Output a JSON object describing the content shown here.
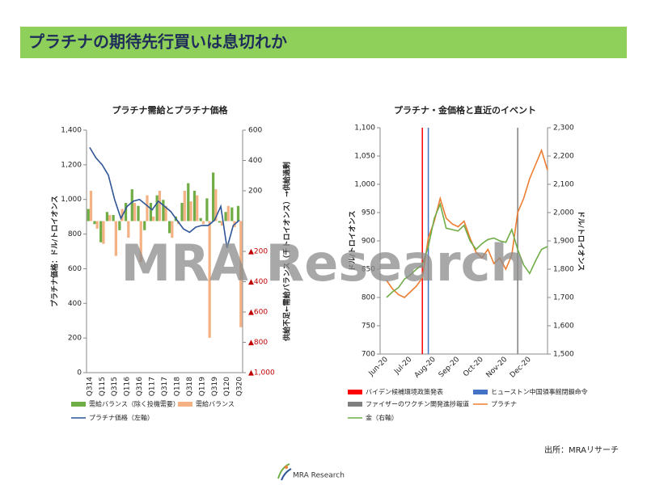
{
  "header": {
    "title": "プラチナの期待先行買いは息切れか"
  },
  "watermark": "MRA Research",
  "source": "出所：MRAリサーチ",
  "logo": "MRA Research",
  "chart_data": [
    {
      "type": "bar",
      "title": "プラチナ需給とプラチナ価格",
      "y_label": "プラチナ価格：ドル/トロイオンス",
      "y2_label": "供給不足←需給バランス（千トロイオンス）→供給過剰",
      "categories": [
        "Q314",
        null,
        "Q115",
        null,
        "Q315",
        null,
        "Q116",
        null,
        "Q316",
        null,
        "Q117",
        null,
        "Q317",
        null,
        "Q118",
        null,
        "Q318",
        null,
        "Q119",
        null,
        "Q319",
        null,
        "Q120",
        null,
        "Q320"
      ],
      "series": [
        {
          "name": "需給バランス（除く投機需要）",
          "type": "bar",
          "axis": "y2",
          "color": "#70ad47",
          "values": [
            80,
            -20,
            -140,
            60,
            40,
            -60,
            120,
            210,
            100,
            -60,
            120,
            170,
            140,
            -80,
            30,
            120,
            250,
            200,
            20,
            150,
            320,
            -10,
            60,
            90,
            100
          ]
        },
        {
          "name": "需給バランス",
          "type": "bar",
          "axis": "y2",
          "color": "#f4b183",
          "values": [
            200,
            -50,
            -150,
            40,
            -230,
            80,
            -110,
            120,
            -270,
            170,
            30,
            200,
            100,
            -110,
            -20,
            200,
            130,
            170,
            -20,
            -770,
            210,
            -30,
            100,
            -40,
            -700
          ]
        },
        {
          "name": "プラチナ価格（左軸）",
          "type": "line",
          "color": "#2f5597",
          "values": [
            1300,
            1240,
            1200,
            1140,
            1000,
            890,
            960,
            990,
            1000,
            970,
            940,
            990,
            960,
            930,
            880,
            830,
            810,
            840,
            850,
            850,
            880,
            960,
            720,
            850,
            880
          ]
        }
      ],
      "ylim": [
        0,
        1400
      ],
      "yticks": [
        0,
        200,
        400,
        600,
        800,
        {
          "value": 1000,
          "label": "1,000"
        },
        {
          "value": 1200,
          "label": "1,200"
        },
        {
          "value": 1400,
          "label": "1,400"
        }
      ],
      "y2lim": [
        -1000,
        600
      ],
      "y2ticks": [
        {
          "value": -1000,
          "label": "▲1,000"
        },
        {
          "value": -800,
          "label": "▲800"
        },
        {
          "value": -600,
          "label": "▲600"
        },
        {
          "value": -400,
          "label": "▲400"
        },
        {
          "value": -200,
          "label": "▲200"
        },
        200,
        400,
        600
      ],
      "negative_tick_color": "#c00000"
    },
    {
      "type": "line",
      "title": "プラチナ・金価格と直近のイベント",
      "y_label": "ドル/トロイオンス",
      "y2_label": "ドル/トロイオンス",
      "categories": [
        "Jun-20",
        null,
        null,
        null,
        "Jul-20",
        null,
        null,
        null,
        "Aug-20",
        null,
        null,
        null,
        "Sep-20",
        null,
        null,
        null,
        "Oct-20",
        null,
        null,
        null,
        "Nov-20",
        null,
        null,
        null,
        "Dec-20",
        null,
        null,
        null
      ],
      "events": [
        {
          "name": "バイデン候補環境政策発表",
          "color": "#ff0000",
          "at": 6
        },
        {
          "name": "ヒューストン中国領事館閉鎖命令",
          "color": "#4472c4",
          "at": 7
        },
        {
          "name": "ファイザーのワクチン開発進捗報道",
          "color": "#7f7f7f",
          "at": 22
        }
      ],
      "series": [
        {
          "name": "プラチナ",
          "color": "#ed7d31",
          "values": [
            830,
            815,
            805,
            800,
            810,
            820,
            835,
            905,
            935,
            975,
            940,
            930,
            925,
            935,
            905,
            880,
            870,
            885,
            860,
            870,
            850,
            875,
            950,
            975,
            1010,
            1035,
            1060,
            1025
          ]
        },
        {
          "name": "金（右軸）",
          "axis": "y2",
          "color": "#70ad47",
          "values": [
            1700,
            1720,
            1735,
            1765,
            1780,
            1800,
            1815,
            1880,
            1980,
            2030,
            1945,
            1940,
            1935,
            1955,
            1900,
            1870,
            1890,
            1905,
            1910,
            1900,
            1895,
            1940,
            1870,
            1815,
            1785,
            1830,
            1870,
            1880
          ]
        }
      ],
      "ylim": [
        700,
        1100
      ],
      "yticks": [
        700,
        750,
        800,
        850,
        900,
        950,
        {
          "value": 1000,
          "label": "1,000"
        },
        {
          "value": 1050,
          "label": "1,050"
        },
        {
          "value": 1100,
          "label": "1,100"
        }
      ],
      "y2lim": [
        1500,
        2300
      ],
      "y2ticks": [
        {
          "value": 1500,
          "label": "1,500"
        },
        {
          "value": 1600,
          "label": "1,600"
        },
        {
          "value": 1700,
          "label": "1,700"
        },
        {
          "value": 1800,
          "label": "1,800"
        },
        {
          "value": 1900,
          "label": "1,900"
        },
        {
          "value": 2000,
          "label": "2,000"
        },
        {
          "value": 2100,
          "label": "2,100"
        },
        {
          "value": 2200,
          "label": "2,200"
        },
        {
          "value": 2300,
          "label": "2,300"
        }
      ]
    }
  ]
}
